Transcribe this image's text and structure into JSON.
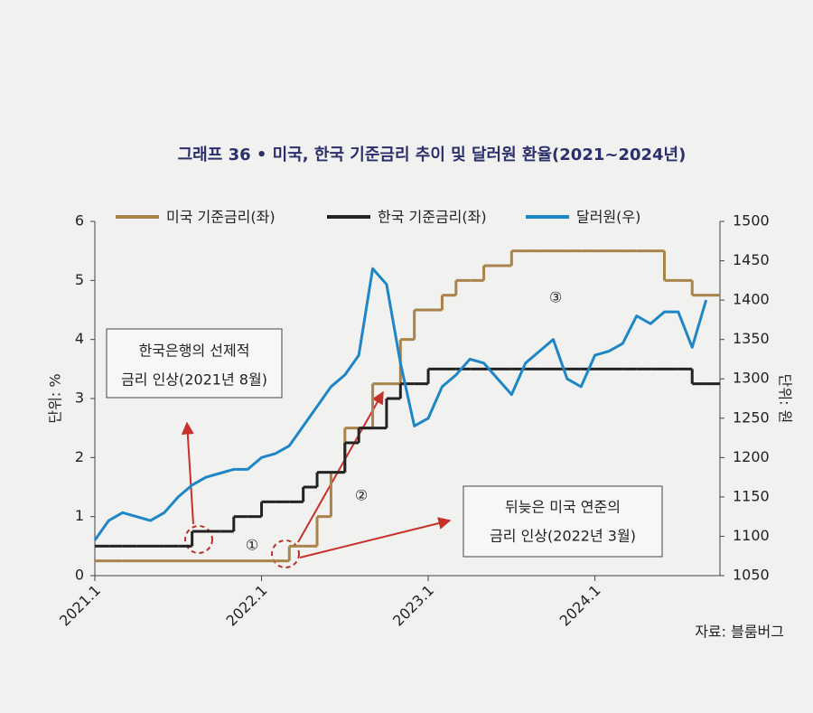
{
  "chart_data": {
    "type": "line",
    "title": "그래프 36 • 미국, 한국 기준금리 추이 및 달러원 환율(2021~2024년)",
    "ylabel": "단위: %",
    "y2label": "단위: 원",
    "source": "자료: 블룸버그",
    "x": [
      "2021.1",
      "2021.2",
      "2021.3",
      "2021.4",
      "2021.5",
      "2021.6",
      "2021.7",
      "2021.8",
      "2021.9",
      "2021.10",
      "2021.11",
      "2021.12",
      "2022.1",
      "2022.2",
      "2022.3",
      "2022.4",
      "2022.5",
      "2022.6",
      "2022.7",
      "2022.8",
      "2022.9",
      "2022.10",
      "2022.11",
      "2022.12",
      "2023.1",
      "2023.2",
      "2023.3",
      "2023.4",
      "2023.5",
      "2023.6",
      "2023.7",
      "2023.8",
      "2023.9",
      "2023.10",
      "2023.11",
      "2023.12",
      "2024.1",
      "2024.2",
      "2024.3",
      "2024.4",
      "2024.5",
      "2024.6",
      "2024.7",
      "2024.8",
      "2024.9"
    ],
    "xlim": [
      "2021.1",
      "2024.10"
    ],
    "xticks": [
      "2021.1",
      "2022.1",
      "2023.1",
      "2024.1"
    ],
    "ylim": [
      0,
      6
    ],
    "yticks": [
      0,
      1,
      2,
      3,
      4,
      5,
      6
    ],
    "y2lim": [
      1050,
      1500
    ],
    "y2ticks": [
      1050,
      1100,
      1150,
      1200,
      1250,
      1300,
      1350,
      1400,
      1450,
      1500
    ],
    "series": [
      {
        "name": "미국 기준금리(좌)",
        "color": "#a8834a",
        "step": true,
        "values": [
          0.25,
          0.25,
          0.25,
          0.25,
          0.25,
          0.25,
          0.25,
          0.25,
          0.25,
          0.25,
          0.25,
          0.25,
          0.25,
          0.25,
          0.5,
          0.5,
          1.0,
          1.75,
          2.5,
          2.5,
          3.25,
          3.25,
          4.0,
          4.5,
          4.5,
          4.75,
          5.0,
          5.0,
          5.25,
          5.25,
          5.5,
          5.5,
          5.5,
          5.5,
          5.5,
          5.5,
          5.5,
          5.5,
          5.5,
          5.5,
          5.5,
          5.0,
          5.0,
          4.75,
          4.75
        ]
      },
      {
        "name": "한국 기준금리(좌)",
        "color": "#222222",
        "step": true,
        "values": [
          0.5,
          0.5,
          0.5,
          0.5,
          0.5,
          0.5,
          0.5,
          0.75,
          0.75,
          0.75,
          1.0,
          1.0,
          1.25,
          1.25,
          1.25,
          1.5,
          1.75,
          1.75,
          2.25,
          2.5,
          2.5,
          3.0,
          3.25,
          3.25,
          3.5,
          3.5,
          3.5,
          3.5,
          3.5,
          3.5,
          3.5,
          3.5,
          3.5,
          3.5,
          3.5,
          3.5,
          3.5,
          3.5,
          3.5,
          3.5,
          3.5,
          3.5,
          3.5,
          3.25,
          3.25
        ]
      },
      {
        "name": "달러원(우)",
        "color": "#1f86c6",
        "axis": "y2",
        "values": [
          1095,
          1120,
          1130,
          1125,
          1120,
          1130,
          1150,
          1165,
          1175,
          1180,
          1185,
          1185,
          1200,
          1205,
          1215,
          1240,
          1265,
          1290,
          1305,
          1330,
          1440,
          1420,
          1320,
          1240,
          1250,
          1290,
          1305,
          1325,
          1320,
          1300,
          1280,
          1320,
          1335,
          1350,
          1300,
          1290,
          1330,
          1335,
          1345,
          1380,
          1370,
          1385,
          1385,
          1340,
          1400
        ]
      }
    ],
    "annotations": [
      {
        "lines": [
          "한국은행의 선제적",
          "금리 인상(2021년 8월)"
        ]
      },
      {
        "lines": [
          "뒤늦은 미국 연준의",
          "금리 인상(2022년 3월)"
        ]
      },
      {
        "lines": [
          "①"
        ]
      },
      {
        "lines": [
          "②"
        ]
      },
      {
        "lines": [
          "③"
        ]
      }
    ]
  }
}
